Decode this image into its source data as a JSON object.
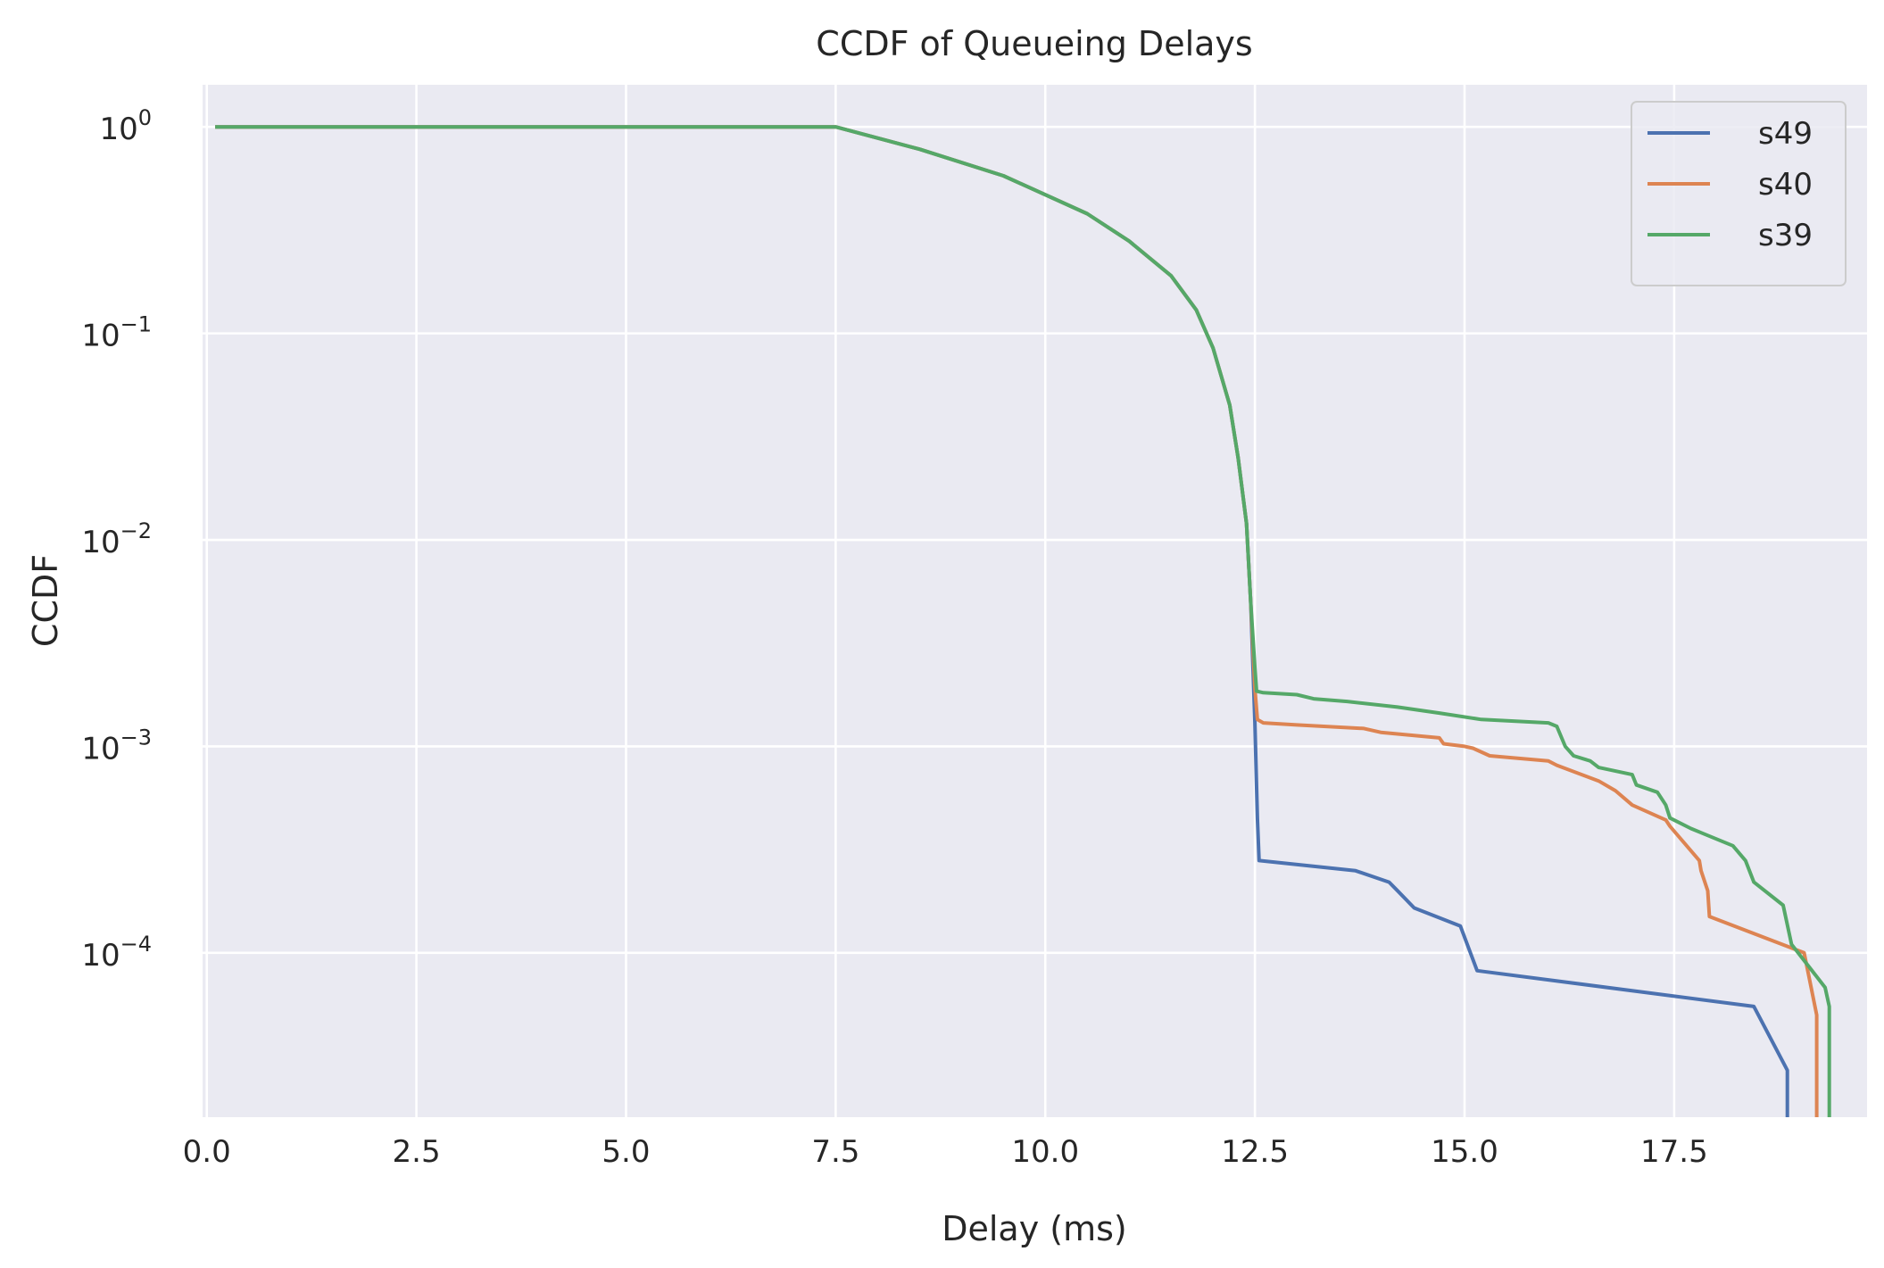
{
  "chart_data": {
    "type": "line",
    "title": "CCDF of Queueing Delays",
    "xlabel": "Delay (ms)",
    "ylabel": "CCDF",
    "xscale": "linear",
    "yscale": "log",
    "xlim": [
      -0.05,
      19.8
    ],
    "ylim": [
      1.6e-05,
      1.6
    ],
    "xticks": [
      0.0,
      2.5,
      5.0,
      7.5,
      10.0,
      12.5,
      15.0,
      17.5
    ],
    "xtick_labels": [
      "0.0",
      "2.5",
      "5.0",
      "7.5",
      "10.0",
      "12.5",
      "15.0",
      "17.5"
    ],
    "yticks": [
      0.0001,
      0.001,
      0.01,
      0.1,
      1
    ],
    "ytick_exponents": [
      "−4",
      "−3",
      "−2",
      "−1",
      "0"
    ],
    "ytick_base": "10",
    "grid": true,
    "background": "#eaeaf2",
    "legend": {
      "placement": "top-right"
    },
    "series": [
      {
        "name": "s49",
        "color": "#4c72b0",
        "x": [
          0.1,
          7.5,
          8.5,
          9.5,
          10.5,
          11.0,
          11.5,
          11.8,
          12.0,
          12.2,
          12.3,
          12.4,
          12.45,
          12.5,
          12.53,
          12.55,
          13.7,
          14.1,
          14.2,
          14.4,
          14.95,
          15.15,
          18.45,
          18.85,
          18.85
        ],
        "y": [
          1.0,
          1.0,
          0.78,
          0.58,
          0.38,
          0.28,
          0.19,
          0.13,
          0.085,
          0.045,
          0.025,
          0.012,
          0.005,
          0.0013,
          0.00045,
          0.00028,
          0.00025,
          0.00022,
          0.0002,
          0.000165,
          0.000135,
          8.2e-05,
          5.5e-05,
          2.7e-05,
          1.6e-05
        ]
      },
      {
        "name": "s40",
        "color": "#dd8452",
        "x": [
          0.1,
          7.5,
          8.5,
          9.5,
          10.5,
          11.0,
          11.5,
          11.8,
          12.0,
          12.2,
          12.3,
          12.4,
          12.45,
          12.5,
          12.53,
          12.6,
          13.0,
          13.8,
          14.0,
          14.7,
          14.75,
          15.0,
          15.1,
          15.3,
          16.0,
          16.1,
          16.6,
          16.8,
          17.0,
          17.4,
          17.45,
          17.8,
          17.82,
          17.9,
          17.92,
          19.05,
          19.2,
          19.2
        ],
        "y": [
          1.0,
          1.0,
          0.78,
          0.58,
          0.38,
          0.28,
          0.19,
          0.13,
          0.085,
          0.045,
          0.025,
          0.012,
          0.005,
          0.0019,
          0.00135,
          0.0013,
          0.00127,
          0.00122,
          0.00117,
          0.0011,
          0.00103,
          0.001,
          0.00098,
          0.0009,
          0.00085,
          0.00081,
          0.00068,
          0.00061,
          0.00052,
          0.00044,
          0.00041,
          0.00028,
          0.00025,
          0.0002,
          0.00015,
          0.0001,
          5e-05,
          1.6e-05
        ]
      },
      {
        "name": "s39",
        "color": "#55a868",
        "x": [
          0.1,
          7.5,
          8.5,
          9.5,
          10.5,
          11.0,
          11.5,
          11.8,
          12.0,
          12.2,
          12.3,
          12.4,
          12.45,
          12.5,
          12.52,
          12.6,
          13.0,
          13.2,
          13.6,
          14.2,
          14.7,
          15.2,
          16.0,
          16.1,
          16.2,
          16.3,
          16.5,
          16.6,
          17.0,
          17.05,
          17.3,
          17.4,
          17.45,
          17.7,
          18.2,
          18.35,
          18.45,
          18.8,
          18.9,
          19.3,
          19.35,
          19.35
        ],
        "y": [
          1.0,
          1.0,
          0.78,
          0.58,
          0.38,
          0.28,
          0.19,
          0.13,
          0.085,
          0.045,
          0.025,
          0.012,
          0.005,
          0.0024,
          0.00185,
          0.00182,
          0.00178,
          0.0017,
          0.00165,
          0.00155,
          0.00145,
          0.00135,
          0.0013,
          0.00125,
          0.001,
          0.0009,
          0.00085,
          0.00079,
          0.00073,
          0.00065,
          0.0006,
          0.00052,
          0.00045,
          0.0004,
          0.00033,
          0.00028,
          0.00022,
          0.00017,
          0.00011,
          6.8e-05,
          5.5e-05,
          1.6e-05
        ]
      }
    ]
  }
}
